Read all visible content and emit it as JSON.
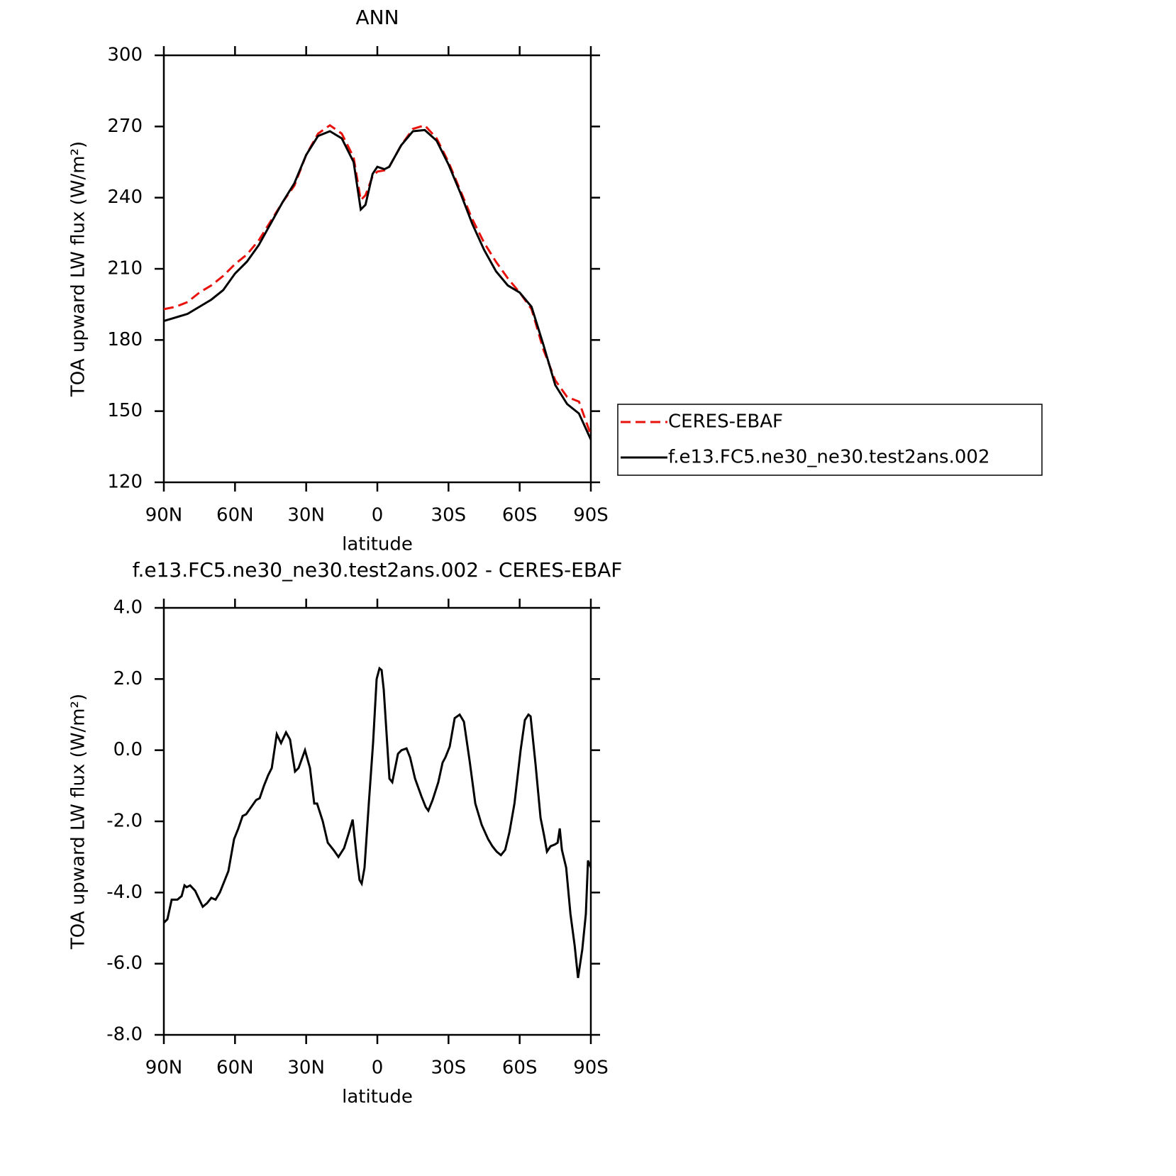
{
  "chart_data": [
    {
      "type": "line",
      "title": "ANN",
      "x_label": "latitude",
      "y_label": "TOA upward LW flux (W/m²)",
      "x": [
        90,
        85,
        80,
        75,
        70,
        65,
        60,
        55,
        50,
        45,
        40,
        35,
        30,
        25,
        20,
        15,
        10,
        7,
        5,
        2,
        0,
        -3,
        -5,
        -10,
        -15,
        -20,
        -25,
        -30,
        -35,
        -40,
        -45,
        -50,
        -55,
        -60,
        -65,
        -70,
        -75,
        -80,
        -85,
        -90
      ],
      "series": [
        {
          "name": "CERES-EBAF",
          "color": "#e8120c",
          "dash": true,
          "values": [
            193,
            194,
            196,
            200,
            203,
            207,
            212,
            216,
            222,
            230,
            238,
            245,
            258,
            267,
            270.5,
            267,
            257,
            239,
            241,
            249,
            251,
            251.5,
            253,
            262,
            269,
            270.5,
            265,
            255,
            243,
            231,
            221,
            213,
            206,
            200,
            193,
            176,
            163,
            156,
            154,
            140
          ]
        },
        {
          "name": "f.e13.FC5.ne30_ne30.test2ans.002",
          "color": "#000000",
          "dash": false,
          "values": [
            188,
            189.5,
            191,
            194,
            197,
            201,
            208,
            213,
            220,
            229,
            238,
            246,
            258,
            266,
            268,
            265,
            255,
            235,
            237,
            250,
            253,
            252,
            253,
            262,
            268,
            268.5,
            264,
            254,
            242,
            229,
            218,
            209,
            203,
            200,
            194,
            178,
            161,
            153,
            149,
            138
          ]
        }
      ],
      "xlim": [
        90,
        -90
      ],
      "xticks": [
        {
          "value": 90,
          "label": "90N"
        },
        {
          "value": 60,
          "label": "60N"
        },
        {
          "value": 30,
          "label": "30N"
        },
        0,
        {
          "value": -30,
          "label": "30S"
        },
        {
          "value": -60,
          "label": "60S"
        },
        {
          "value": -90,
          "label": "90S"
        }
      ],
      "ylim": [
        120,
        300
      ],
      "yticks": [
        120,
        150,
        180,
        210,
        240,
        270,
        300
      ],
      "legend": "right"
    },
    {
      "type": "line",
      "title": "f.e13.FC5.ne30_ne30.test2ans.002 - CERES-EBAF",
      "x_label": "latitude",
      "y_label": "TOA upward LW flux (W/m²)",
      "color": "#000000",
      "x": [
        90,
        88.5,
        86.7,
        84.3,
        82.5,
        81.3,
        80.4,
        78.9,
        76.8,
        73.6,
        71.8,
        70.0,
        68.2,
        66.4,
        64.6,
        62.8,
        60.4,
        58.6,
        56.8,
        55.3,
        53.2,
        51.1,
        49.6,
        47.8,
        46.0,
        44.5,
        42.4,
        40.6,
        38.5,
        36.8,
        34.7,
        33.2,
        30.5,
        28.4,
        26.6,
        25.4,
        23.0,
        20.9,
        18.5,
        16.4,
        14.0,
        11.9,
        10.4,
        8.7,
        7.5,
        6.6,
        5.4,
        3.6,
        1.8,
        0.3,
        -0.9,
        -1.8,
        -2.7,
        -5.1,
        -6.3,
        -8.7,
        -10.2,
        -12.3,
        -13.8,
        -15.9,
        -18.6,
        -20.4,
        -21.5,
        -23.3,
        -25.7,
        -27.5,
        -28.7,
        -30.5,
        -32.6,
        -34.7,
        -36.5,
        -38.9,
        -41.3,
        -44.0,
        -46.7,
        -48.5,
        -50.3,
        -52.1,
        -53.9,
        -55.7,
        -57.8,
        -60.4,
        -62.2,
        -63.7,
        -64.6,
        -66.7,
        -68.8,
        -70.3,
        -71.5,
        -73.0,
        -74.8,
        -76.0,
        -76.9,
        -77.8,
        -79.6,
        -81.4,
        -83.2,
        -84.6,
        -86.4,
        -87.9,
        -88.8,
        -90
      ],
      "values": [
        -4.85,
        -4.75,
        -4.2,
        -4.2,
        -4.1,
        -3.8,
        -3.85,
        -3.8,
        -3.95,
        -4.4,
        -4.3,
        -4.15,
        -4.2,
        -4.0,
        -3.7,
        -3.4,
        -2.5,
        -2.2,
        -1.85,
        -1.8,
        -1.6,
        -1.4,
        -1.35,
        -1.0,
        -0.7,
        -0.5,
        0.45,
        0.2,
        0.5,
        0.3,
        -0.6,
        -0.5,
        0.0,
        -0.5,
        -1.5,
        -1.5,
        -2.0,
        -2.6,
        -2.8,
        -3.0,
        -2.75,
        -2.3,
        -1.95,
        -3.0,
        -3.65,
        -3.75,
        -3.3,
        -1.5,
        0.2,
        2.0,
        2.3,
        2.25,
        1.7,
        -0.8,
        -0.9,
        -0.1,
        0.0,
        0.05,
        -0.2,
        -0.8,
        -1.3,
        -1.6,
        -1.7,
        -1.4,
        -0.9,
        -0.35,
        -0.2,
        0.1,
        0.9,
        1.0,
        0.8,
        -0.3,
        -1.5,
        -2.1,
        -2.5,
        -2.7,
        -2.85,
        -2.95,
        -2.8,
        -2.3,
        -1.5,
        0.0,
        0.85,
        1.0,
        0.95,
        -0.4,
        -1.9,
        -2.4,
        -2.85,
        -2.7,
        -2.65,
        -2.6,
        -2.2,
        -2.8,
        -3.3,
        -4.6,
        -5.5,
        -6.4,
        -5.6,
        -4.6,
        -3.1,
        -3.3
      ],
      "xlim": [
        90,
        -90
      ],
      "xticks": [
        {
          "value": 90,
          "label": "90N"
        },
        {
          "value": 60,
          "label": "60N"
        },
        {
          "value": 30,
          "label": "30N"
        },
        0,
        {
          "value": -30,
          "label": "30S"
        },
        {
          "value": -60,
          "label": "60S"
        },
        {
          "value": -90,
          "label": "90S"
        }
      ],
      "ylim": [
        -8,
        4
      ],
      "yticks": [
        {
          "value": -8,
          "label": "-8.0"
        },
        {
          "value": -6,
          "label": "-6.0"
        },
        {
          "value": -4,
          "label": "-4.0"
        },
        {
          "value": -2,
          "label": "-2.0"
        },
        {
          "value": 0,
          "label": "0.0"
        },
        {
          "value": 2,
          "label": "2.0"
        },
        {
          "value": 4,
          "label": "4.0"
        }
      ]
    }
  ]
}
